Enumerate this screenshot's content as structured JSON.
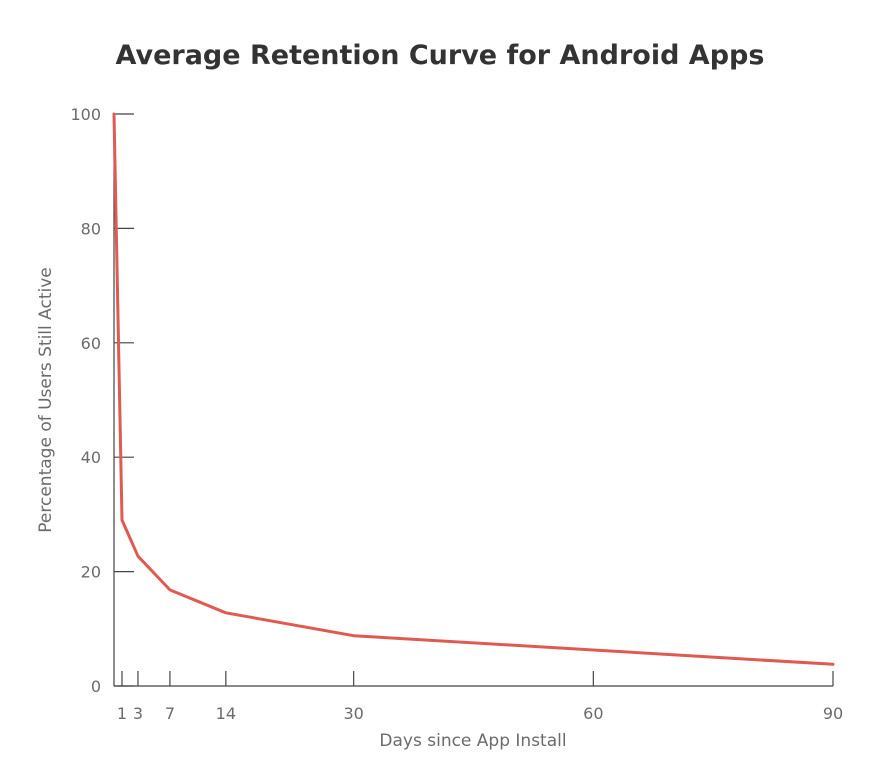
{
  "chart_data": {
    "type": "line",
    "title": "Average Retention Curve for Android Apps",
    "xlabel": "Days since App Install",
    "ylabel": "Percentage of Users Still Active",
    "xlim": [
      0,
      90
    ],
    "ylim": [
      0,
      100
    ],
    "x_ticks": [
      1,
      3,
      7,
      14,
      30,
      60,
      90
    ],
    "y_ticks": [
      0,
      20,
      40,
      60,
      80,
      100
    ],
    "grid": false,
    "series": [
      {
        "color": "#e05a52",
        "points": [
          {
            "x": 0,
            "y": 100
          },
          {
            "x": 1,
            "y": 29
          },
          {
            "x": 3,
            "y": 22.7
          },
          {
            "x": 7,
            "y": 16.8
          },
          {
            "x": 14,
            "y": 12.8
          },
          {
            "x": 30,
            "y": 8.8
          },
          {
            "x": 60,
            "y": 6.3
          },
          {
            "x": 90,
            "y": 3.8
          }
        ]
      }
    ]
  }
}
